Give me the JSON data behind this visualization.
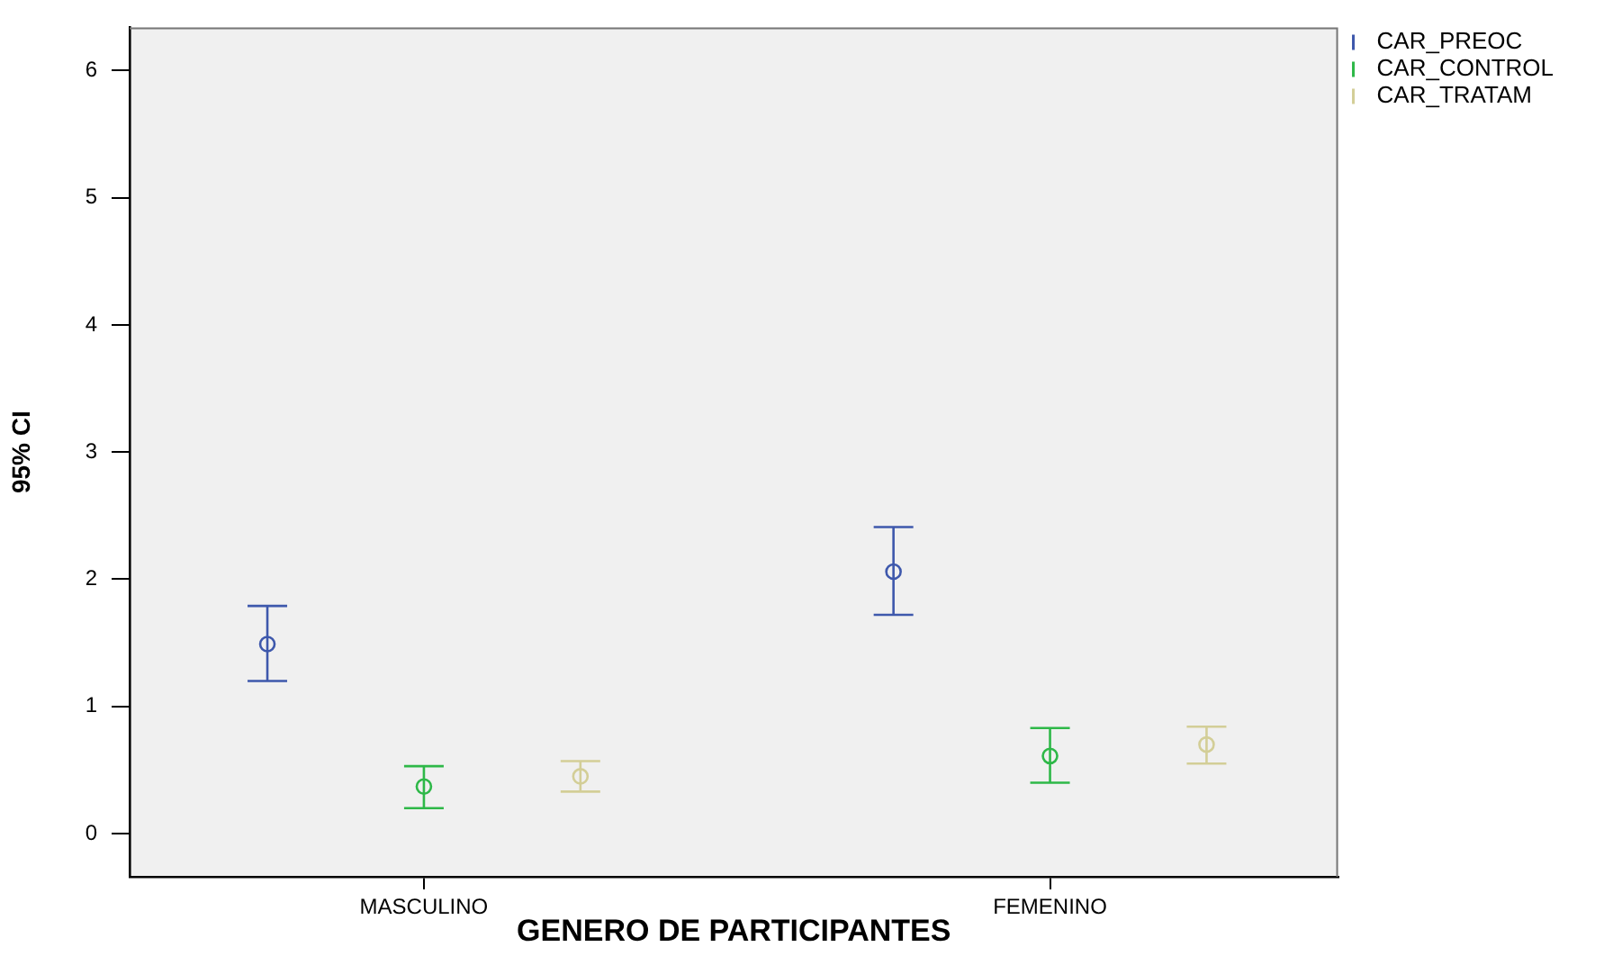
{
  "chart_data": {
    "type": "scatter",
    "xlabel": "GENERO DE PARTICIPANTES",
    "ylabel": "95% CI",
    "categories": [
      "MASCULINO",
      "FEMENINO"
    ],
    "series": [
      {
        "name": "CAR_PREOC",
        "color": "#3e58ac",
        "values": [
          1.49,
          2.06
        ],
        "errors": [
          [
            1.2,
            1.79
          ],
          [
            1.72,
            2.41
          ]
        ]
      },
      {
        "name": "CAR_CONTROL",
        "color": "#2eb848",
        "values": [
          0.37,
          0.61
        ],
        "errors": [
          [
            0.2,
            0.53
          ],
          [
            0.4,
            0.83
          ]
        ]
      },
      {
        "name": "CAR_TRATAM",
        "color": "#d3ce97",
        "values": [
          0.45,
          0.7
        ],
        "errors": [
          [
            0.33,
            0.57
          ],
          [
            0.55,
            0.84
          ]
        ]
      }
    ],
    "ylim": [
      -0.34,
      6.34
    ],
    "yticks": [
      0,
      1,
      2,
      3,
      4,
      5,
      6
    ],
    "marker": "circle",
    "legend": "top right"
  }
}
